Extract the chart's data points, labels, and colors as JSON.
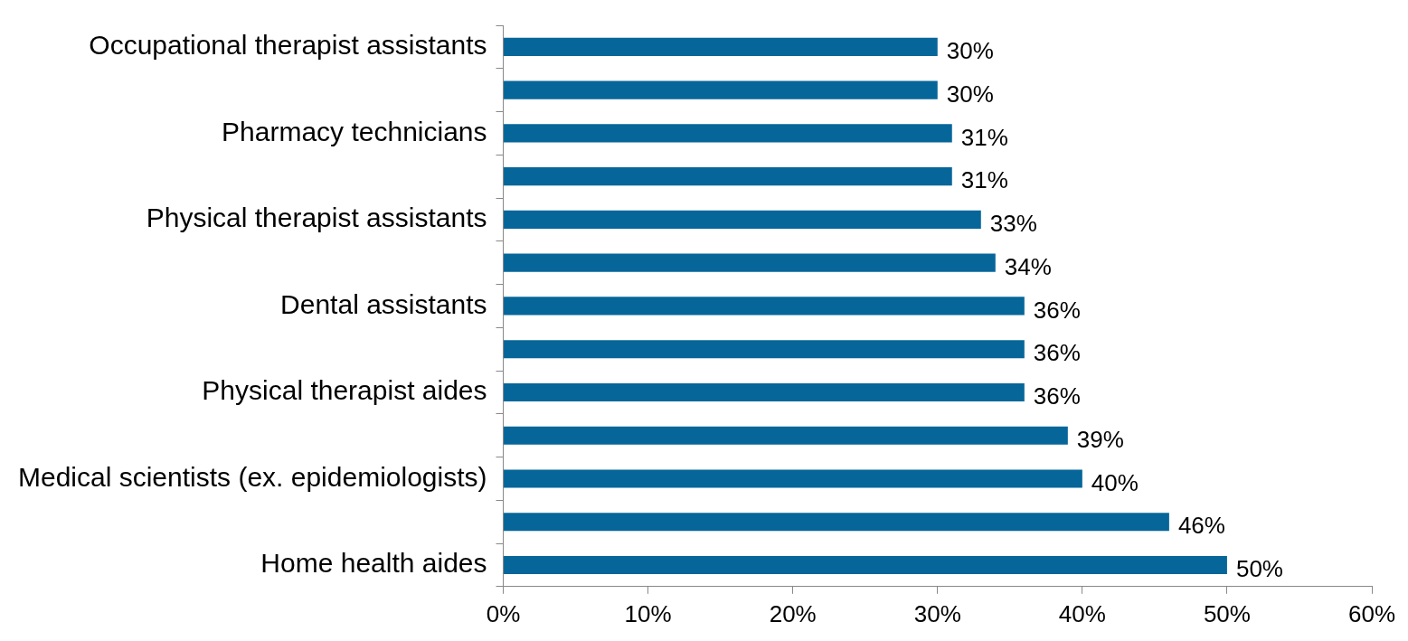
{
  "chart_data": {
    "type": "bar",
    "orientation": "horizontal",
    "categories": [
      "Occupational therapist assistants",
      null,
      "Pharmacy technicians",
      null,
      "Physical therapist assistants",
      null,
      "Dental assistants",
      null,
      "Physical therapist aides",
      null,
      "Medical scientists (ex. epidemiologists)",
      null,
      "Home health aides"
    ],
    "values": [
      30,
      30,
      31,
      31,
      33,
      34,
      36,
      36,
      36,
      39,
      40,
      46,
      50
    ],
    "value_labels": [
      "30%",
      "30%",
      "31%",
      "31%",
      "33%",
      "34%",
      "36%",
      "36%",
      "36%",
      "39%",
      "40%",
      "46%",
      "50%"
    ],
    "color": "#066699",
    "xlim": [
      0,
      60
    ],
    "xticks": [
      {
        "value": 0,
        "label": "0%"
      },
      {
        "value": 10,
        "label": "10%"
      },
      {
        "value": 20,
        "label": "20%"
      },
      {
        "value": 30,
        "label": "30%"
      },
      {
        "value": 40,
        "label": "40%"
      },
      {
        "value": 50,
        "label": "50%"
      },
      {
        "value": 60,
        "label": "60%"
      }
    ]
  }
}
